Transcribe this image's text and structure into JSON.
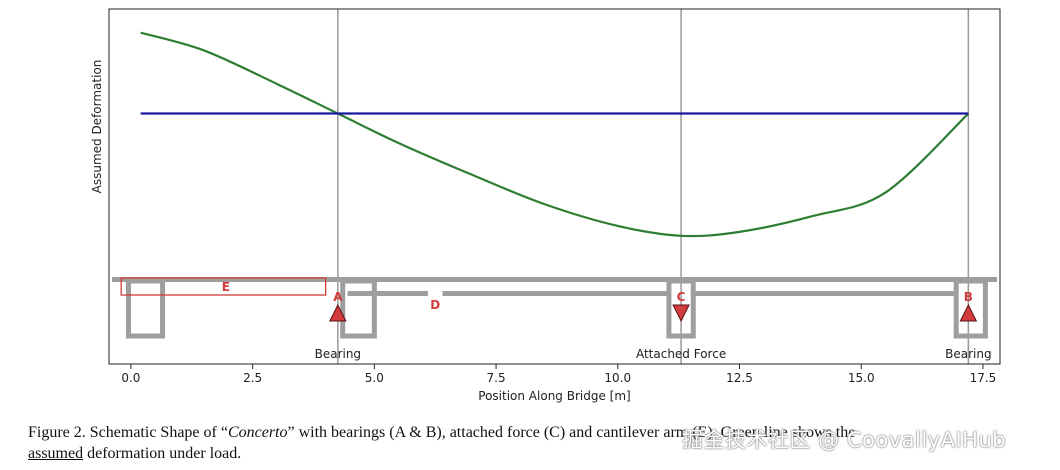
{
  "chart_data": {
    "type": "line",
    "xlabel": "Position Along Bridge [m]",
    "ylabel": "Assumed Deformation",
    "xlim": [
      -0.45,
      17.85
    ],
    "xticks": [
      "0.0",
      "2.5",
      "5.0",
      "7.5",
      "10.0",
      "12.5",
      "15.0",
      "17.5"
    ],
    "xtick_values": [
      0,
      2.5,
      5,
      7.5,
      10,
      12.5,
      15,
      17.5
    ],
    "grid": false,
    "vertical_lines_x": [
      4.25,
      11.3,
      17.2
    ],
    "series": [
      {
        "color": "#2e7d32",
        "x": [
          0.2,
          1.5,
          3.0,
          4.25,
          5.5,
          7.0,
          8.5,
          10.0,
          11.3,
          12.5,
          14.0,
          15.5,
          17.2
        ],
        "y": [
          0.73,
          0.64,
          0.47,
          0.32,
          0.17,
          0.01,
          -0.14,
          -0.25,
          -0.3,
          -0.28,
          -0.2,
          -0.08,
          0.32
        ]
      },
      {
        "color": "#1a1a9e",
        "x": [
          0.2,
          17.2
        ],
        "y": [
          0.32,
          0.32
        ]
      }
    ],
    "ylim": [
      -0.95,
      0.85
    ],
    "annotations": [
      {
        "text": "Bearing",
        "x": 4.25
      },
      {
        "text": "Attached Force",
        "x": 11.3
      },
      {
        "text": "Bearing",
        "x": 17.2
      }
    ],
    "markers": [
      {
        "letter": "A",
        "x": 4.25,
        "shape": "triangle-up"
      },
      {
        "letter": "C",
        "x": 11.3,
        "shape": "triangle-down"
      },
      {
        "letter": "B",
        "x": 17.2,
        "shape": "triangle-up"
      }
    ],
    "labels": [
      {
        "letter": "D",
        "x": 6.25
      },
      {
        "letter": "E",
        "x": 1.95,
        "x_start": -0.2,
        "x_end": 4.0
      }
    ]
  },
  "caption": {
    "prefix": "Figure 2. Schematic Shape of “",
    "title": "Concerto",
    "after_title": "” with bearings (A & B), attached force (C) and cantilever arm (E). Green line shows the",
    "line2_underlined": "assumed",
    "line2_rest": " deformation under load."
  },
  "watermark": "掘金技术社区 @ CoovallyAIHub"
}
